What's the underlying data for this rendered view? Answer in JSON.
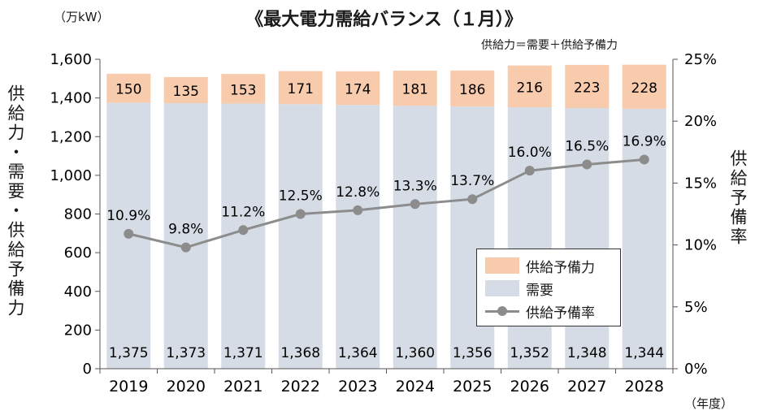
{
  "chart_data": {
    "type": "bar",
    "title": "《最大電力需給バランス（１月）》",
    "note": "供給力＝需要＋供給予備力",
    "unit_left": "（万kW）",
    "unit_x": "（年度）",
    "ylabel_left": "供給力・需要・供給予備力",
    "ylabel_right": "供給予備率",
    "categories": [
      "2019",
      "2020",
      "2021",
      "2022",
      "2023",
      "2024",
      "2025",
      "2026",
      "2027",
      "2028"
    ],
    "ylim": [
      0,
      1600
    ],
    "yticks": [
      "0",
      "200",
      "400",
      "600",
      "800",
      "1,000",
      "1,200",
      "1,400",
      "1,600"
    ],
    "y2lim": [
      0,
      25
    ],
    "y2ticks": [
      "0%",
      "5%",
      "10%",
      "15%",
      "20%",
      "25%"
    ],
    "grid": false,
    "legend_position": "lower-right",
    "series": [
      {
        "name": "需要",
        "kind": "bar-stack-bottom",
        "color": "#d6dce5",
        "values": [
          1375,
          1373,
          1371,
          1368,
          1364,
          1360,
          1356,
          1352,
          1348,
          1344
        ],
        "labels": [
          "1,375",
          "1,373",
          "1,371",
          "1,368",
          "1,364",
          "1,360",
          "1,356",
          "1,352",
          "1,348",
          "1,344"
        ]
      },
      {
        "name": "供給予備力",
        "kind": "bar-stack-top",
        "color": "#f8cbad",
        "values": [
          150,
          135,
          153,
          171,
          174,
          181,
          186,
          216,
          223,
          228
        ],
        "labels": [
          "150",
          "135",
          "153",
          "171",
          "174",
          "181",
          "186",
          "216",
          "223",
          "228"
        ]
      },
      {
        "name": "供給予備率",
        "kind": "line-secondary-axis",
        "color": "#8c8c8c",
        "values": [
          10.9,
          9.8,
          11.2,
          12.5,
          12.8,
          13.3,
          13.7,
          16.0,
          16.5,
          16.9
        ],
        "labels": [
          "10.9%",
          "9.8%",
          "11.2%",
          "12.5%",
          "12.8%",
          "13.3%",
          "13.7%",
          "16.0%",
          "16.5%",
          "16.9%"
        ]
      }
    ]
  }
}
